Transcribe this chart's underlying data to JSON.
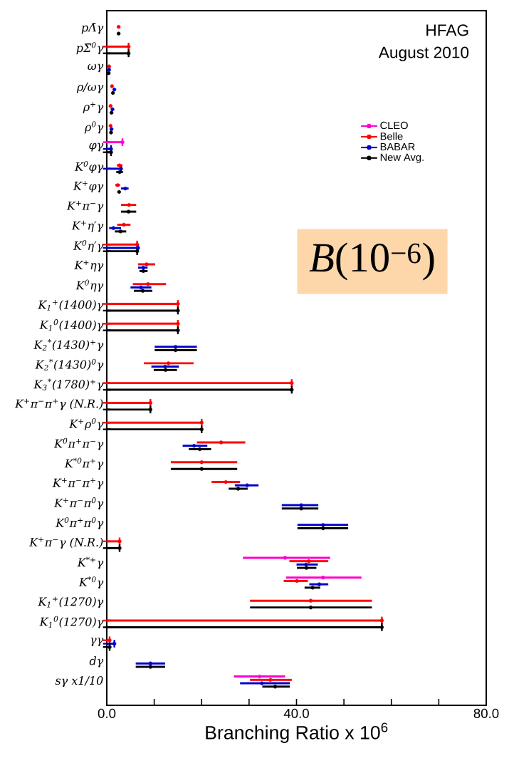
{
  "chart_data": {
    "type": "scatter",
    "xlabel": "Branching Ratio x 10$^{6}$",
    "annotations": [
      "HFAG",
      "August 2010",
      "*B*(10$^{−6}$)"
    ],
    "categories": [
      "pΛ̄γ",
      "pΣ̄$^{0}$γ",
      "ωγ",
      "ρ/ωγ",
      "ρ$^{+}$γ",
      "ρ$^{0}$γ",
      "φγ",
      "K$^{0}$φγ",
      "K$^{+}$φγ",
      "K$^{+}$π$^{−}$γ",
      "K$^{+}$η′γ",
      "K$^{0}$η′γ",
      "K$^{+}$ηγ",
      "K$^{0}$ηγ",
      "K$_{1}$$^{+}$(1400)γ",
      "K$_{1}$$^{0}$(1400)γ",
      "K$_{2}$$^{*}$(1430)$^{+}$γ",
      "K$_{2}$$^{*}$(1430)$^{0}$γ",
      "K$_{3}$$^{*}$(1780)$^{+}$γ",
      "K$^{+}$π$^{−}$π$^{+}$γ (N.R.)",
      "K$^{+}$ρ$^{0}$γ",
      "K$^{0}$π$^{+}$π$^{−}$γ",
      "K$^{*0}$π$^{+}$γ",
      "K$^{+}$π$^{−}$π$^{+}$γ",
      "K$^{+}$π$^{−}$π$^{0}$γ",
      "K$^{0}$π$^{+}$π$^{0}$γ",
      "K$^{+}$π$^{−}$γ (N.R.)",
      "K$^{*+}$γ",
      "K$^{*0}$γ",
      "K$_{1}$$^{+}$(1270)γ",
      "K$_{1}$$^{0}$(1270)γ",
      "γγ",
      "dγ",
      "sγ x1/10"
    ],
    "series": [
      {
        "name": "CLEO",
        "color": "#ff00cc",
        "values": [
          null,
          null,
          null,
          null,
          null,
          null,
          3.3,
          null,
          null,
          null,
          null,
          null,
          null,
          null,
          null,
          null,
          null,
          null,
          null,
          null,
          null,
          null,
          null,
          null,
          null,
          null,
          null,
          37.6,
          45.6,
          null,
          null,
          null,
          null,
          32.2
        ],
        "errors": [
          null,
          null,
          null,
          null,
          null,
          null,
          [
            0,
            3.3
          ],
          null,
          null,
          null,
          null,
          null,
          null,
          null,
          null,
          null,
          null,
          null,
          null,
          null,
          null,
          null,
          null,
          null,
          null,
          null,
          null,
          [
            28.7,
            47.1
          ],
          [
            37.8,
            53.7
          ],
          null,
          null,
          null,
          null,
          5.4
        ]
      },
      {
        "name": "Belle",
        "color": "#ff0000",
        "values": [
          2.5,
          4.6,
          0.5,
          1.1,
          0.8,
          0.8,
          null,
          2.7,
          2.3,
          4.7,
          3.6,
          6.4,
          8.4,
          8.7,
          15.0,
          15.0,
          null,
          13.0,
          39.0,
          9.2,
          20.0,
          24.1,
          20.0,
          25.1,
          null,
          null,
          2.7,
          42.6,
          40.1,
          43.0,
          58.0,
          0.6,
          null,
          34.5
        ],
        "errors": [
          null,
          [
            0,
            4.6
          ],
          null,
          null,
          null,
          null,
          null,
          0.6,
          0.5,
          [
            3.0,
            6.2
          ],
          1.4,
          [
            0,
            6.4
          ],
          1.8,
          [
            5.5,
            12.5
          ],
          [
            0,
            15.0
          ],
          [
            0,
            15.0
          ],
          null,
          [
            7.8,
            18.3
          ],
          [
            0,
            39.0
          ],
          [
            0,
            9.2
          ],
          [
            0,
            20.0
          ],
          5.1,
          [
            13.5,
            27.5
          ],
          3.0,
          null,
          null,
          [
            0,
            2.7
          ],
          4.1,
          [
            37.3,
            42.4
          ],
          [
            30.2,
            55.9
          ],
          [
            0,
            58.0
          ],
          [
            0,
            0.6
          ],
          null,
          [
            30.2,
            39.0
          ]
        ]
      },
      {
        "name": "BABAR",
        "color": "#0000cc",
        "values": [
          null,
          null,
          0.5,
          1.6,
          1.2,
          1.0,
          0.9,
          3.0,
          3.9,
          null,
          1.4,
          6.6,
          7.7,
          7.2,
          null,
          null,
          14.5,
          12.3,
          null,
          null,
          null,
          18.4,
          null,
          29.6,
          41.0,
          45.6,
          null,
          42.0,
          44.8,
          null,
          null,
          1.6,
          9.2,
          32.7
        ],
        "errors": [
          null,
          null,
          null,
          null,
          null,
          null,
          [
            0,
            0.9
          ],
          [
            0,
            3.0
          ],
          [
            3.0,
            4.6
          ],
          null,
          [
            0.5,
            3.0
          ],
          [
            0,
            6.6
          ],
          [
            6.6,
            8.6
          ],
          2.2,
          null,
          null,
          [
            10.1,
            19.0
          ],
          2.9,
          null,
          null,
          null,
          [
            16.0,
            21.2
          ],
          null,
          [
            27.0,
            32.0
          ],
          [
            36.9,
            44.6
          ],
          [
            40.2,
            50.9
          ],
          null,
          [
            40.0,
            44.5
          ],
          [
            42.7,
            46.7
          ],
          null,
          null,
          [
            0,
            1.6
          ],
          3.1,
          [
            28.1,
            38.6
          ]
        ]
      },
      {
        "name": "New Avg.",
        "color": "#000000",
        "values": [
          2.5,
          4.6,
          0.4,
          1.3,
          1.0,
          0.9,
          0.9,
          2.7,
          2.6,
          4.6,
          2.9,
          6.4,
          7.7,
          7.6,
          15.0,
          15.0,
          14.5,
          12.4,
          39.0,
          9.2,
          20.0,
          19.6,
          20.0,
          27.7,
          41.0,
          45.6,
          2.7,
          42.1,
          43.4,
          43.0,
          58.0,
          0.6,
          9.2,
          35.5
        ],
        "errors": [
          null,
          [
            0,
            4.6
          ],
          null,
          null,
          null,
          null,
          [
            0,
            0.9
          ],
          0.7,
          null,
          1.6,
          1.2,
          [
            0,
            6.4
          ],
          [
            6.9,
            8.6
          ],
          [
            5.7,
            9.6
          ],
          [
            0,
            15.0
          ],
          [
            0,
            15.0
          ],
          [
            10.1,
            19.0
          ],
          [
            9.9,
            14.8
          ],
          [
            0,
            39.0
          ],
          [
            0,
            9.2
          ],
          [
            0,
            20.0
          ],
          [
            17.3,
            22.0
          ],
          [
            13.5,
            27.5
          ],
          2.0,
          [
            36.9,
            44.6
          ],
          [
            40.2,
            50.9
          ],
          [
            0,
            2.7
          ],
          [
            40.1,
            44.2
          ],
          [
            41.7,
            45.0
          ],
          [
            30.2,
            55.9
          ],
          [
            0,
            58.0
          ],
          [
            0,
            0.6
          ],
          3.1,
          [
            32.8,
            38.6
          ]
        ]
      }
    ],
    "xlim": [
      0,
      80
    ],
    "xticks": [
      {
        "value": 0,
        "label": "0.0"
      },
      {
        "value": 10,
        "label": null
      },
      {
        "value": 20,
        "label": null
      },
      {
        "value": 30,
        "label": null
      },
      {
        "value": 40,
        "label": "40.0"
      },
      {
        "value": 50,
        "label": null
      },
      {
        "value": 60,
        "label": null
      },
      {
        "value": 70,
        "label": null
      },
      {
        "value": 80,
        "label": "80.0"
      }
    ],
    "orientation": "horizontal",
    "legend": "top right",
    "marker": "circle"
  }
}
